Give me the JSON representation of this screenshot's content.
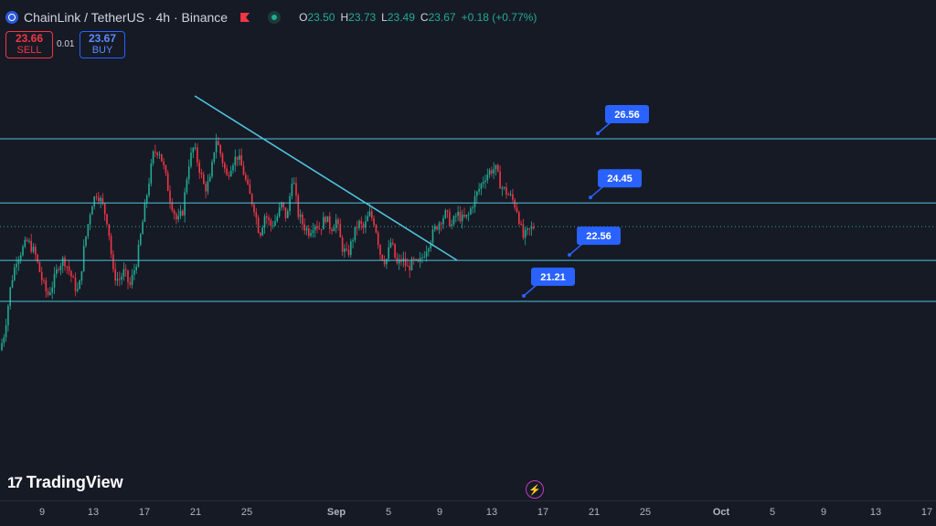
{
  "header": {
    "title": "ChainLink / TetherUS · 4h · Binance",
    "ohlc": [
      {
        "k": "O",
        "v": "23.50"
      },
      {
        "k": "H",
        "v": "23.73"
      },
      {
        "k": "L",
        "v": "23.49"
      },
      {
        "k": "C",
        "v": "23.67"
      },
      {
        "k": "",
        "v": "+0.18 (+0.77%)"
      }
    ]
  },
  "trade": {
    "sell_price": "23.66",
    "sell_label": "SELL",
    "spread": "0.01",
    "buy_price": "23.67",
    "buy_label": "BUY"
  },
  "branding": {
    "logo_text": "TradingView",
    "logo_mark": "17"
  },
  "icons": {
    "symbol": "chainlink-logo-icon",
    "flag": "flag-icon",
    "status": "market-status-icon",
    "replay": "lightning-icon"
  },
  "colors": {
    "up": "#22ab94",
    "down": "#f23645",
    "line": "#4fc3dc",
    "label": "#2962ff",
    "bg": "#161a25"
  },
  "x_axis": {
    "ticks": [
      "9",
      "13",
      "17",
      "21",
      "25",
      "Sep",
      "5",
      "9",
      "13",
      "17",
      "21",
      "25",
      "Oct",
      "5",
      "9",
      "13",
      "17"
    ]
  },
  "chart_data": {
    "type": "candlestick",
    "symbol": "ChainLink / TetherUS",
    "interval": "4h",
    "exchange": "Binance",
    "y_range_visible": [
      19.2,
      28.6
    ],
    "horizontal_levels": [
      {
        "name": "26.56",
        "value": 26.56
      },
      {
        "name": "24.45",
        "value": 24.45
      },
      {
        "name": "22.56",
        "value": 22.56
      },
      {
        "name": "21.21",
        "value": 21.21
      }
    ],
    "current_price": 23.67,
    "trendline_note": "descending trendline from Aug 20 high to Sep 9 low",
    "price_path": [
      [
        0,
        19.6
      ],
      [
        5,
        20.2
      ],
      [
        12,
        21.8
      ],
      [
        18,
        22.6
      ],
      [
        24,
        22.9
      ],
      [
        30,
        23.2
      ],
      [
        38,
        22.8
      ],
      [
        46,
        21.9
      ],
      [
        52,
        21.4
      ],
      [
        58,
        21.8
      ],
      [
        64,
        22.4
      ],
      [
        70,
        22.6
      ],
      [
        76,
        22.2
      ],
      [
        82,
        21.7
      ],
      [
        86,
        21.5
      ],
      [
        92,
        23.0
      ],
      [
        100,
        24.4
      ],
      [
        106,
        24.8
      ],
      [
        112,
        24.4
      ],
      [
        118,
        23.8
      ],
      [
        124,
        22.1
      ],
      [
        130,
        21.9
      ],
      [
        136,
        22.2
      ],
      [
        142,
        21.7
      ],
      [
        150,
        22.6
      ],
      [
        156,
        23.8
      ],
      [
        162,
        25.0
      ],
      [
        168,
        26.1
      ],
      [
        174,
        26.2
      ],
      [
        180,
        25.5
      ],
      [
        186,
        24.6
      ],
      [
        194,
        23.8
      ],
      [
        200,
        24.2
      ],
      [
        206,
        25.7
      ],
      [
        212,
        26.3
      ],
      [
        218,
        25.6
      ],
      [
        224,
        24.9
      ],
      [
        230,
        25.2
      ],
      [
        236,
        26.6
      ],
      [
        242,
        26.0
      ],
      [
        248,
        25.3
      ],
      [
        254,
        25.8
      ],
      [
        260,
        26.0
      ],
      [
        266,
        25.5
      ],
      [
        272,
        24.8
      ],
      [
        278,
        24.3
      ],
      [
        284,
        23.4
      ],
      [
        290,
        24.1
      ],
      [
        296,
        23.7
      ],
      [
        302,
        23.9
      ],
      [
        308,
        24.4
      ],
      [
        314,
        23.9
      ],
      [
        320,
        25.4
      ],
      [
        326,
        24.1
      ],
      [
        332,
        23.7
      ],
      [
        338,
        23.5
      ],
      [
        344,
        23.8
      ],
      [
        350,
        23.6
      ],
      [
        356,
        24.0
      ],
      [
        362,
        23.6
      ],
      [
        368,
        23.9
      ],
      [
        374,
        23.0
      ],
      [
        380,
        22.7
      ],
      [
        386,
        23.3
      ],
      [
        392,
        23.8
      ],
      [
        398,
        23.6
      ],
      [
        404,
        24.1
      ],
      [
        410,
        23.8
      ],
      [
        416,
        22.8
      ],
      [
        422,
        22.5
      ],
      [
        428,
        23.2
      ],
      [
        434,
        22.4
      ],
      [
        440,
        22.6
      ],
      [
        446,
        22.3
      ],
      [
        452,
        22.5
      ],
      [
        458,
        22.4
      ],
      [
        464,
        22.8
      ],
      [
        470,
        23.2
      ],
      [
        476,
        23.6
      ],
      [
        482,
        23.9
      ],
      [
        488,
        24.1
      ],
      [
        494,
        23.7
      ],
      [
        500,
        24.1
      ],
      [
        506,
        23.9
      ],
      [
        512,
        24.0
      ],
      [
        518,
        24.5
      ],
      [
        524,
        24.9
      ],
      [
        530,
        25.3
      ],
      [
        536,
        25.5
      ],
      [
        542,
        25.6
      ],
      [
        548,
        25.0
      ],
      [
        554,
        24.8
      ],
      [
        560,
        24.6
      ],
      [
        566,
        24.2
      ],
      [
        572,
        23.3
      ],
      [
        578,
        23.5
      ],
      [
        584,
        23.67
      ]
    ]
  }
}
